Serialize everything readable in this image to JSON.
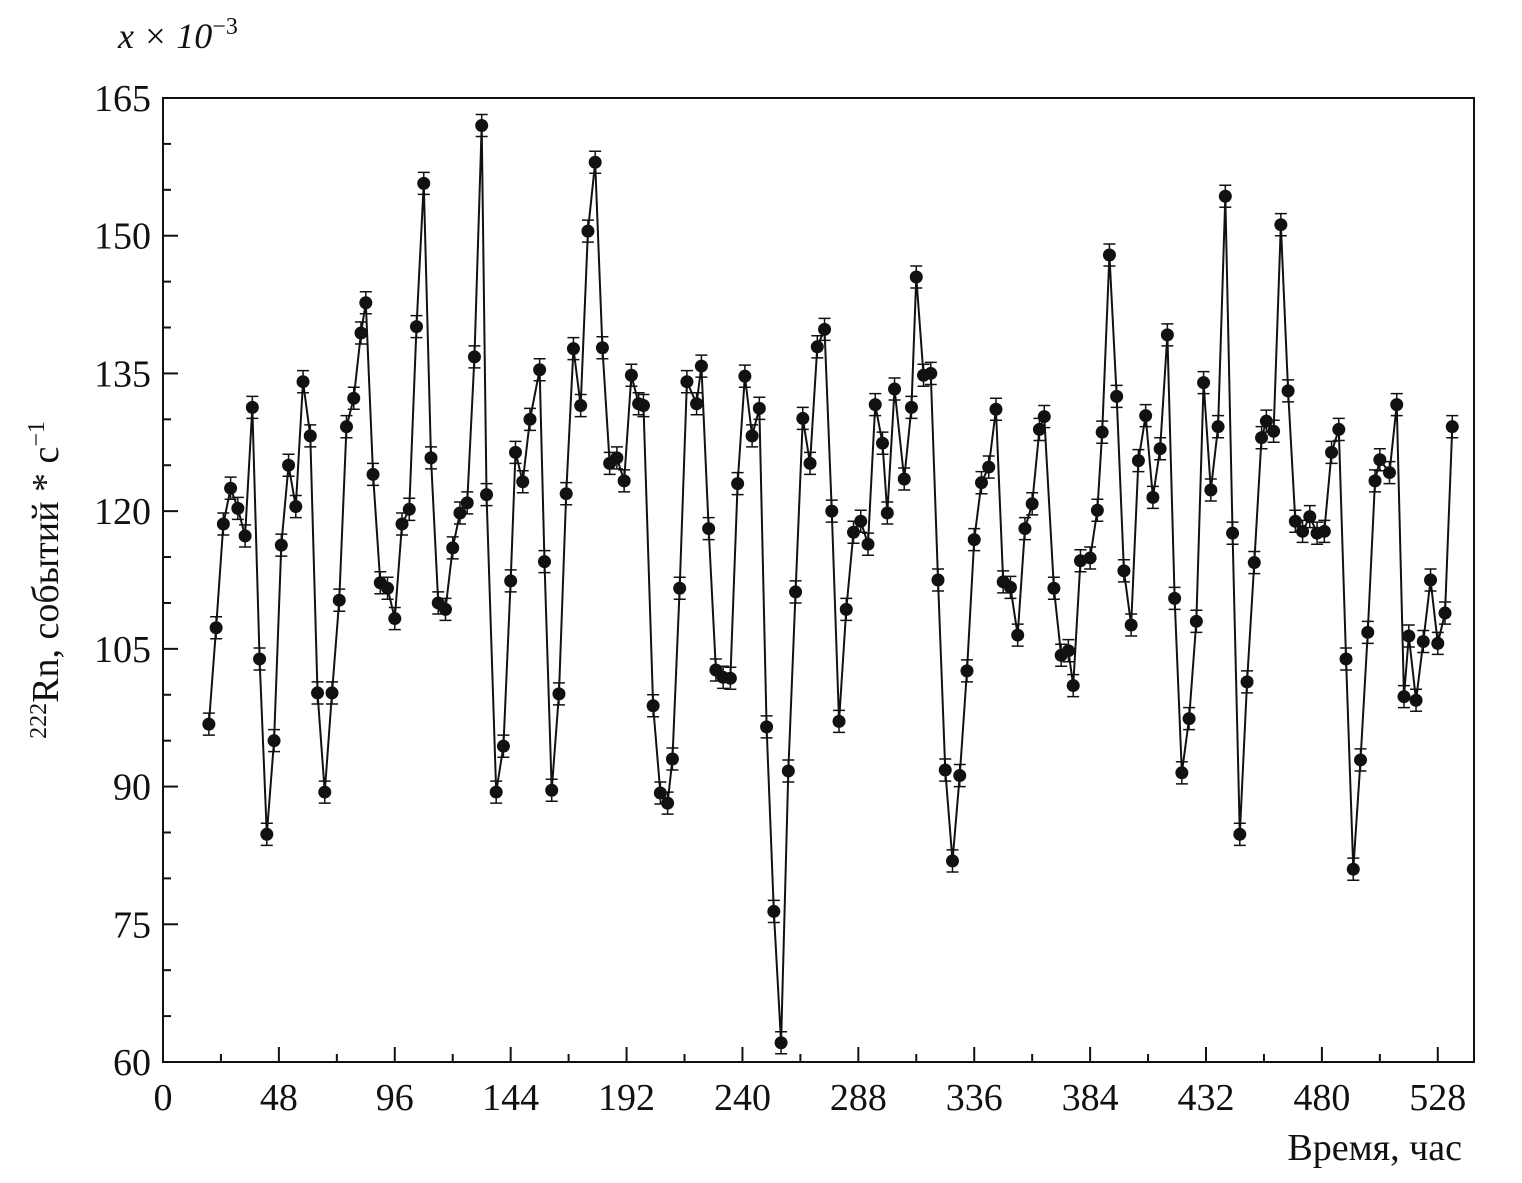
{
  "chart_data": {
    "type": "line",
    "xlabel": "Время, час",
    "ylabel": {
      "isotope": "222",
      "text": "Rn, событий * с",
      "exponent": "−1"
    },
    "y_multiplier": {
      "base": "x × 10",
      "exponent": "−3"
    },
    "color": "#111111",
    "error": 1.2,
    "xlim": [
      0,
      543
    ],
    "ylim": [
      60,
      165
    ],
    "xticks": [
      0,
      48,
      96,
      144,
      192,
      240,
      288,
      336,
      384,
      432,
      480,
      528
    ],
    "xminorticks": [
      24,
      72,
      120,
      168,
      216,
      264,
      312,
      360,
      408,
      456,
      504
    ],
    "yticks": [
      60,
      75,
      90,
      105,
      120,
      135,
      150,
      165
    ],
    "yminorticks": [
      65,
      70,
      80,
      85,
      95,
      100,
      110,
      115,
      125,
      130,
      140,
      145,
      155,
      160
    ],
    "x": [
      19,
      22,
      25,
      28,
      31,
      34,
      37,
      40,
      43,
      46,
      49,
      52,
      55,
      58,
      61,
      64,
      67,
      70,
      73,
      76,
      79,
      82,
      84,
      87,
      90,
      93,
      96,
      99,
      102,
      105,
      108,
      111,
      114,
      117,
      120,
      123,
      126,
      129,
      132,
      134,
      138,
      141,
      144,
      146,
      149,
      152,
      156,
      158,
      161,
      164,
      167,
      170,
      173,
      176,
      179,
      182,
      185,
      188,
      191,
      194,
      197,
      199,
      203,
      206,
      209,
      211,
      214,
      217,
      221,
      223,
      226,
      229,
      232,
      235,
      238,
      241,
      244,
      247,
      250,
      253,
      256,
      259,
      262,
      265,
      268,
      271,
      274,
      277,
      280,
      283,
      286,
      289,
      292,
      295,
      298,
      300,
      303,
      307,
      310,
      312,
      315,
      318,
      321,
      324,
      327,
      330,
      333,
      336,
      339,
      342,
      345,
      348,
      351,
      354,
      357,
      360,
      363,
      365,
      369,
      372,
      375,
      377,
      380,
      384,
      387,
      389,
      392,
      395,
      398,
      401,
      404,
      407,
      410,
      413,
      416,
      419,
      422,
      425,
      428,
      431,
      434,
      437,
      440,
      443,
      446,
      449,
      452,
      455,
      457,
      460,
      463,
      466,
      469,
      472,
      475,
      478,
      481,
      484,
      487,
      490,
      493,
      496,
      499,
      502,
      504,
      508,
      511,
      514,
      516,
      519,
      522,
      525,
      528,
      531,
      534
    ],
    "values": [
      96.8,
      107.3,
      118.6,
      122.5,
      120.3,
      117.3,
      131.3,
      103.9,
      84.8,
      95.0,
      116.3,
      125.0,
      120.5,
      134.1,
      128.2,
      100.2,
      89.4,
      100.2,
      110.3,
      129.2,
      132.3,
      139.4,
      142.7,
      124.0,
      112.2,
      111.6,
      108.3,
      118.6,
      120.2,
      140.1,
      155.7,
      125.8,
      110.0,
      109.3,
      116.0,
      119.8,
      120.9,
      136.8,
      162.0,
      121.8,
      89.4,
      94.4,
      112.4,
      126.4,
      123.2,
      130.0,
      135.4,
      114.5,
      89.6,
      100.1,
      121.9,
      137.7,
      131.5,
      150.5,
      158.0,
      137.8,
      125.2,
      125.8,
      123.3,
      134.8,
      131.7,
      131.5,
      98.8,
      89.3,
      88.2,
      93.0,
      111.6,
      134.1,
      131.7,
      135.8,
      118.1,
      102.7,
      101.9,
      101.8,
      123.0,
      134.7,
      128.2,
      131.2,
      96.5,
      76.4,
      62.1,
      91.7,
      111.2,
      130.1,
      125.2,
      137.9,
      139.8,
      120.0,
      97.1,
      109.3,
      117.7,
      118.9,
      116.4,
      131.6,
      127.4,
      119.8,
      133.3,
      123.5,
      131.3,
      145.5,
      134.8,
      135.0,
      112.5,
      91.8,
      81.9,
      91.2,
      102.6,
      116.9,
      123.1,
      124.8,
      131.1,
      112.3,
      111.7,
      106.5,
      118.1,
      120.8,
      128.9,
      130.3,
      111.6,
      104.3,
      104.8,
      101.0,
      114.6,
      114.9,
      120.1,
      128.6,
      147.9,
      132.5,
      113.5,
      107.6,
      125.5,
      130.4,
      121.5,
      126.8,
      139.2,
      110.5,
      91.5,
      97.4,
      108.0,
      134.0,
      122.3,
      129.2,
      154.3,
      117.6,
      84.8,
      101.4,
      114.4,
      128.0,
      129.8,
      128.7,
      151.2,
      133.1,
      118.9,
      117.8,
      119.4,
      117.6,
      117.8,
      126.4,
      128.9,
      103.9,
      81.0,
      92.9,
      106.8,
      123.3,
      125.6,
      124.2,
      131.6,
      99.8,
      106.4,
      99.4,
      105.8,
      112.5,
      105.6,
      108.9,
      129.2
    ]
  }
}
